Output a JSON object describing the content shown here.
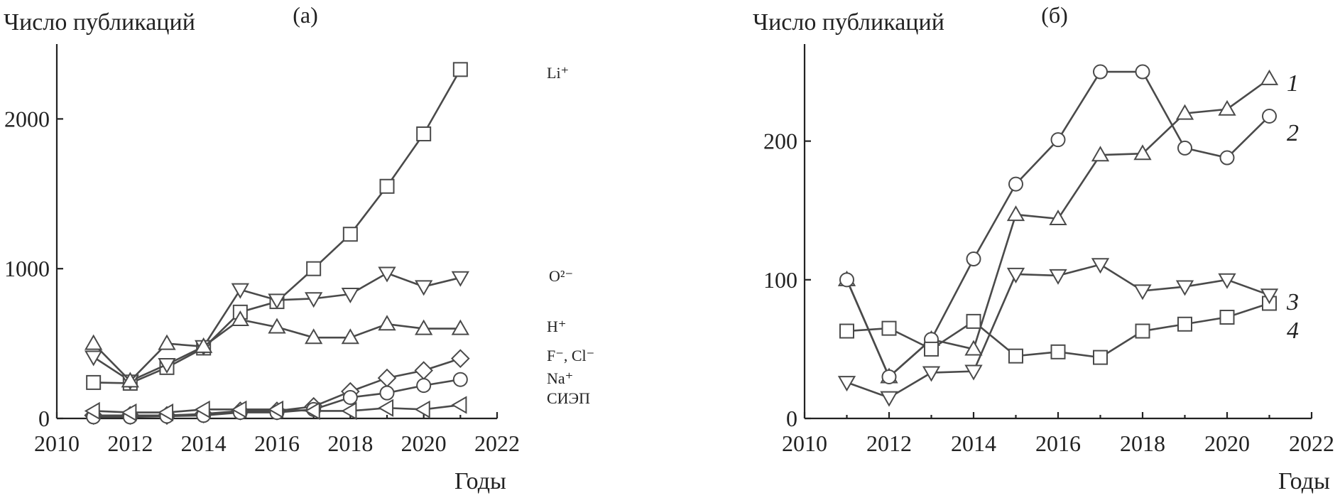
{
  "chart_data": [
    {
      "type": "line",
      "panel_label": "(а)",
      "ylabel": "Число публикаций",
      "xlabel": "Годы",
      "xlim": [
        2010,
        2022
      ],
      "ylim": [
        0,
        2500
      ],
      "xticks": [
        "2010",
        "2012",
        "2014",
        "2016",
        "2018",
        "2020",
        "2022"
      ],
      "yticks": [
        "0",
        "1000",
        "2000"
      ],
      "grid": false,
      "x": [
        2011,
        2012,
        2013,
        2014,
        2015,
        2016,
        2017,
        2018,
        2019,
        2020,
        2021
      ],
      "series": [
        {
          "name": "Li⁺",
          "marker": "square",
          "values": [
            240,
            235,
            340,
            470,
            710,
            780,
            1000,
            1230,
            1550,
            1900,
            2330
          ]
        },
        {
          "name": "O²⁻",
          "marker": "triangle-down",
          "values": [
            410,
            250,
            360,
            480,
            860,
            790,
            800,
            830,
            970,
            880,
            940
          ]
        },
        {
          "name": "H⁺",
          "marker": "triangle-up",
          "values": [
            500,
            250,
            500,
            480,
            660,
            610,
            540,
            540,
            630,
            600,
            600
          ]
        },
        {
          "name": "F⁻, Cl⁻",
          "marker": "diamond",
          "values": [
            20,
            20,
            20,
            30,
            50,
            50,
            80,
            180,
            270,
            320,
            400
          ]
        },
        {
          "name": "Na⁺",
          "marker": "circle",
          "values": [
            10,
            10,
            15,
            20,
            40,
            40,
            60,
            140,
            170,
            220,
            260
          ]
        },
        {
          "name": "СИЭП",
          "marker": "triangle-left",
          "values": [
            50,
            40,
            40,
            60,
            60,
            60,
            50,
            50,
            70,
            60,
            90
          ]
        }
      ]
    },
    {
      "type": "line",
      "panel_label": "(б)",
      "ylabel": "Число публикаций",
      "xlabel": "Годы",
      "xlim": [
        2010,
        2022
      ],
      "ylim": [
        0,
        270
      ],
      "xticks": [
        "2010",
        "2012",
        "2014",
        "2016",
        "2018",
        "2020",
        "2022"
      ],
      "yticks": [
        "0",
        "100",
        "200"
      ],
      "grid": false,
      "x": [
        2011,
        2012,
        2013,
        2014,
        2015,
        2016,
        2017,
        2018,
        2019,
        2020,
        2021
      ],
      "series": [
        {
          "name": "1",
          "marker": "triangle-up",
          "values": [
            100,
            30,
            57,
            50,
            147,
            144,
            190,
            191,
            220,
            223,
            245
          ]
        },
        {
          "name": "2",
          "marker": "circle",
          "values": [
            100,
            30,
            57,
            115,
            169,
            201,
            250,
            250,
            195,
            188,
            218
          ]
        },
        {
          "name": "3",
          "marker": "square",
          "values": [
            63,
            65,
            50,
            70,
            45,
            48,
            44,
            63,
            68,
            73,
            83
          ]
        },
        {
          "name": "4",
          "marker": "triangle-down",
          "values": [
            26,
            15,
            33,
            34,
            104,
            103,
            111,
            92,
            95,
            100,
            89
          ]
        }
      ]
    }
  ]
}
